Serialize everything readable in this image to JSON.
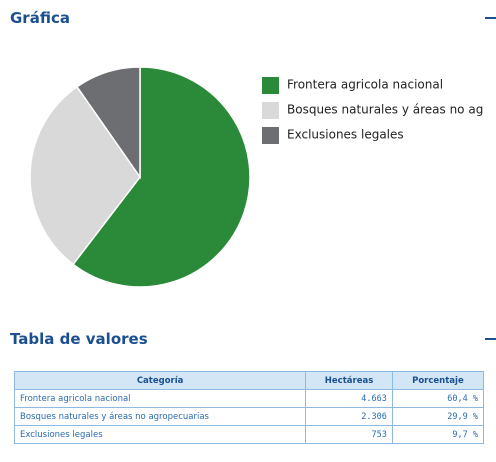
{
  "header": {
    "title": "Gráfica"
  },
  "chart_data": {
    "type": "pie",
    "categories": [
      "Frontera agricola nacional",
      "Bosques naturales y áreas no agropecuarias",
      "Exclusiones legales"
    ],
    "values": [
      60.4,
      29.9,
      9.7
    ],
    "colors": [
      "#2b8a3a",
      "#d9d9d9",
      "#6d6e71"
    ]
  },
  "table": {
    "title": "Tabla de valores",
    "columns": [
      "Categoría",
      "Hectáreas",
      "Porcentaje"
    ],
    "rows": [
      [
        "Frontera agricola nacional",
        "4.663",
        "60,4 %"
      ],
      [
        "Bosques naturales y áreas no agropecuarias",
        "2.306",
        "29,9 %"
      ],
      [
        "Exclusiones legales",
        "753",
        "9,7 %"
      ]
    ]
  }
}
